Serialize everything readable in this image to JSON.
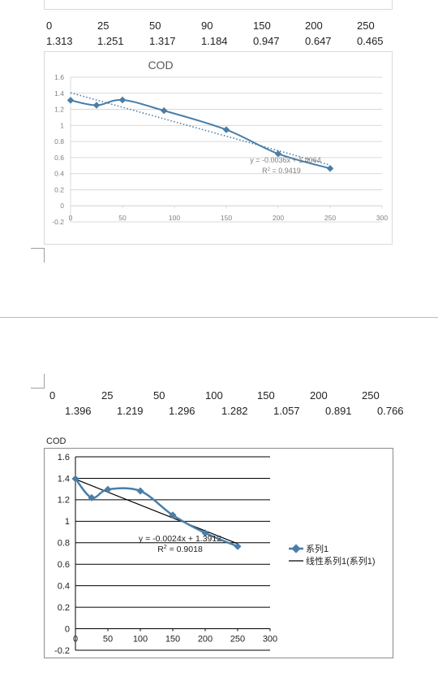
{
  "table1": {
    "x_row": [
      "0",
      "25",
      "50",
      "90",
      "150",
      "200",
      "250"
    ],
    "y_row": [
      "1.313",
      "1.251",
      "1.317",
      "1.184",
      "0.947",
      "0.647",
      "0.465"
    ]
  },
  "table2": {
    "x_row": [
      "0",
      "25",
      "50",
      "100",
      "150",
      "200",
      "250"
    ],
    "y_row": [
      "1.396",
      "1.219",
      "1.296",
      "1.282",
      "1.057",
      "0.891",
      "0.766"
    ]
  },
  "chart_data": [
    {
      "type": "scatter",
      "title": "COD",
      "xlim": [
        0,
        300
      ],
      "ylim": [
        -0.2,
        1.6
      ],
      "x_ticks": [
        "0",
        "50",
        "100",
        "150",
        "200",
        "250",
        "300"
      ],
      "y_ticks": [
        "-0.2",
        "0",
        "0.2",
        "0.4",
        "0.6",
        "0.8",
        "1",
        "1.2",
        "1.4",
        "1.6"
      ],
      "series": [
        {
          "x": [
            0,
            25,
            50,
            90,
            150,
            200,
            250
          ],
          "y": [
            1.313,
            1.251,
            1.317,
            1.184,
            0.947,
            0.647,
            0.465
          ]
        }
      ],
      "trendline": {
        "slope": -0.0036,
        "intercept": 1.4064
      },
      "equation_text": "y = -0.0036x + 1.4064",
      "r2_prefix": "R",
      "r2_value": " = 0.9419",
      "grid": true,
      "color": "#4a7ea8"
    },
    {
      "type": "scatter",
      "title": "COD",
      "xlim": [
        0,
        300
      ],
      "ylim": [
        -0.2,
        1.6
      ],
      "x_ticks": [
        "0",
        "50",
        "100",
        "150",
        "200",
        "250",
        "300"
      ],
      "y_ticks": [
        "-0.2",
        "0",
        "0.2",
        "0.4",
        "0.6",
        "0.8",
        "1",
        "1.2",
        "1.4",
        "1.6"
      ],
      "series": [
        {
          "name": "系列1",
          "x": [
            0,
            25,
            50,
            100,
            150,
            200,
            250
          ],
          "y": [
            1.396,
            1.219,
            1.296,
            1.282,
            1.057,
            0.891,
            0.766
          ]
        }
      ],
      "trendline": {
        "name": "线性系列1(系列1)",
        "slope": -0.0024,
        "intercept": 1.3912
      },
      "equation_text": "y = -0.0024x + 1.3912",
      "r2_prefix": "R",
      "r2_value": " = 0.9018",
      "grid": true,
      "legend": "right",
      "color": "#4a7ea8"
    }
  ]
}
